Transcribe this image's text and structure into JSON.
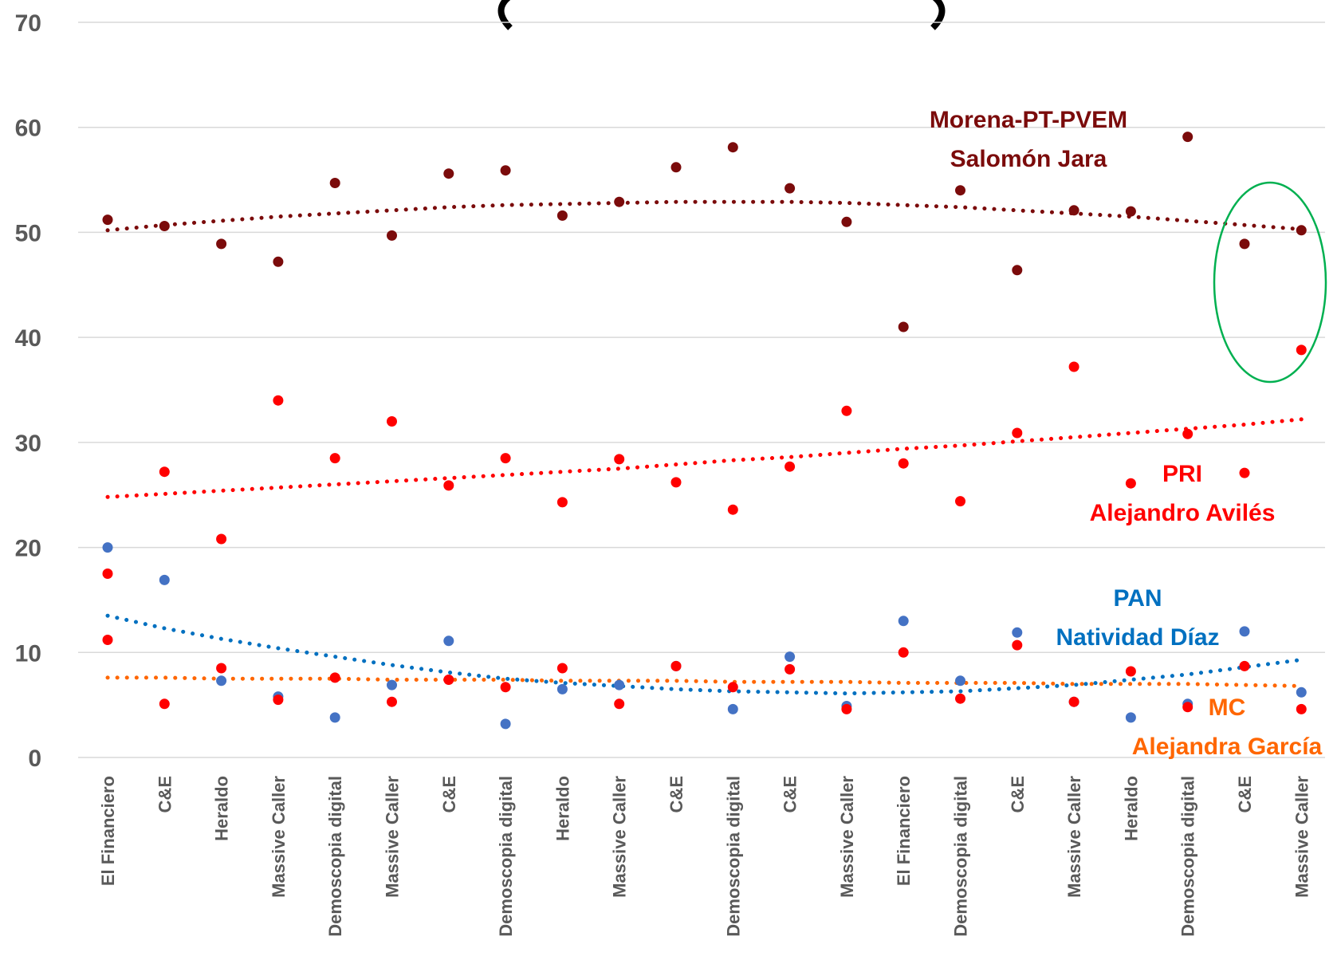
{
  "chart_data": {
    "type": "scatter",
    "title": "",
    "xlabel": "",
    "ylabel": "",
    "ylim": [
      0,
      70
    ],
    "yticks": [
      "0",
      "10",
      "20",
      "30",
      "40",
      "50",
      "60",
      "70"
    ],
    "grid": "horizontal",
    "categories": [
      "El Financiero",
      "C&E",
      "Heraldo",
      "Massive Caller",
      "Demoscopia digital",
      "Massive Caller",
      "C&E",
      "Demoscopia digital",
      "Heraldo",
      "Massive Caller",
      "C&E",
      "Demoscopia digital",
      "C&E",
      "Massive Caller",
      "El Financiero",
      "Demoscopia digital",
      "C&E",
      "Massive Caller",
      "Heraldo",
      "Demoscopia digital",
      "C&E",
      "Massive Caller"
    ],
    "series": [
      {
        "key": "morena",
        "color": "#7b0b0b",
        "values": [
          51.2,
          50.6,
          48.9,
          47.2,
          54.7,
          49.7,
          55.6,
          55.9,
          51.6,
          52.9,
          56.2,
          58.1,
          54.2,
          51.0,
          41.0,
          54.0,
          46.4,
          52.1,
          52.0,
          59.1,
          48.9,
          50.2
        ]
      },
      {
        "key": "pri",
        "color": "#ff0000",
        "values": [
          17.5,
          27.2,
          20.8,
          34.0,
          28.5,
          32.0,
          25.9,
          28.5,
          24.3,
          28.4,
          26.2,
          23.6,
          27.7,
          33.0,
          28.0,
          24.4,
          30.9,
          37.2,
          26.1,
          30.8,
          27.1,
          38.8
        ]
      },
      {
        "key": "pan",
        "color": "#4472c4",
        "values": [
          20.0,
          16.9,
          7.3,
          5.8,
          3.8,
          6.9,
          11.1,
          3.2,
          6.5,
          6.9,
          8.7,
          4.6,
          9.6,
          4.9,
          13.0,
          7.3,
          11.9,
          5.3,
          3.8,
          5.1,
          12.0,
          6.2
        ]
      },
      {
        "key": "mc",
        "color": "#ff0000",
        "values": [
          11.2,
          5.1,
          8.5,
          5.5,
          7.6,
          5.3,
          7.4,
          6.7,
          8.5,
          5.1,
          8.7,
          6.7,
          8.4,
          4.6,
          10.0,
          5.6,
          10.7,
          5.3,
          8.2,
          4.8,
          8.7,
          4.6
        ]
      }
    ],
    "trendlines": [
      {
        "key": "morena",
        "color": "#7b0b0b",
        "values": [
          50.2,
          50.7,
          51.1,
          51.5,
          51.8,
          52.1,
          52.4,
          52.6,
          52.7,
          52.8,
          52.9,
          52.9,
          52.9,
          52.8,
          52.6,
          52.4,
          52.1,
          51.8,
          51.5,
          51.1,
          50.7,
          50.3
        ]
      },
      {
        "key": "pri",
        "color": "#ff0000",
        "values": [
          24.8,
          25.1,
          25.4,
          25.7,
          26.0,
          26.3,
          26.6,
          26.9,
          27.2,
          27.5,
          27.9,
          28.3,
          28.6,
          29.0,
          29.4,
          29.7,
          30.1,
          30.5,
          30.9,
          31.3,
          31.7,
          32.2
        ]
      },
      {
        "key": "pan",
        "color": "#0070c0",
        "values": [
          13.5,
          12.3,
          11.3,
          10.4,
          9.6,
          8.8,
          8.1,
          7.5,
          7.1,
          6.8,
          6.5,
          6.3,
          6.2,
          6.1,
          6.2,
          6.3,
          6.6,
          6.9,
          7.4,
          7.9,
          8.6,
          9.3
        ]
      },
      {
        "key": "mc",
        "color": "#ff6600",
        "values": [
          7.6,
          7.6,
          7.5,
          7.5,
          7.5,
          7.4,
          7.4,
          7.4,
          7.3,
          7.3,
          7.3,
          7.2,
          7.2,
          7.2,
          7.1,
          7.1,
          7.1,
          7.0,
          7.0,
          7.0,
          6.9,
          6.8
        ]
      }
    ],
    "annotations": [
      {
        "key": "morena",
        "lines": [
          "Morena-PT-PVEM",
          "Salomón Jara"
        ],
        "color": "#7b0b0b"
      },
      {
        "key": "pri",
        "lines": [
          "PRI",
          "Alejandro Avilés"
        ],
        "color": "#ff0000"
      },
      {
        "key": "pan",
        "lines": [
          "PAN",
          "Natividad Díaz"
        ],
        "color": "#0070c0"
      },
      {
        "key": "mc",
        "lines": [
          "MC",
          "Alejandra García"
        ],
        "color": "#ff6600"
      }
    ],
    "highlight": {
      "shape": "ellipse",
      "color": "#00b050"
    }
  }
}
